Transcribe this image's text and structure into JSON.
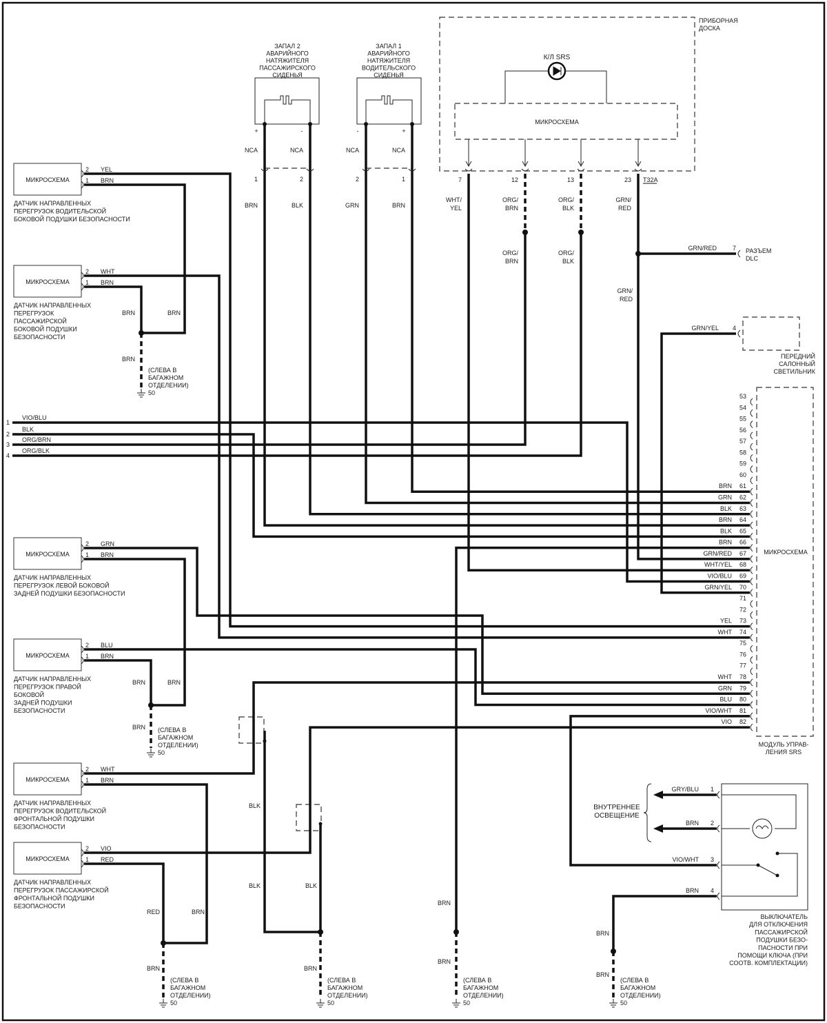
{
  "instrument_panel": {
    "title": [
      "ПРИБОРНАЯ",
      "ДОСКА"
    ],
    "lamp_label": "К/Л SRS",
    "chip_label": "МИКРОСХЕМА",
    "connector": "T32A",
    "pins": [
      "7",
      "12",
      "13",
      "23"
    ],
    "wires": [
      [
        "WHT/",
        "YEL"
      ],
      [
        "ORG/",
        "BRN"
      ],
      [
        "ORG/",
        "BLK"
      ],
      [
        "GRN/",
        "RED"
      ]
    ],
    "wires_below_splice": [
      [
        "ORG/",
        "BRN"
      ],
      [
        "ORG/",
        "BLK"
      ],
      [
        "GRN/",
        "RED"
      ]
    ]
  },
  "pretensioners": [
    {
      "title": [
        "ЗАПАЛ 2",
        "АВАРИЙНОГО",
        "НАТЯЖИТЕЛЯ",
        "ПАССАЖИРСКОГО",
        "СИДЕНЬЯ"
      ],
      "polarity": [
        "+",
        "-"
      ],
      "nca": [
        "NCA",
        "NCA"
      ],
      "pins": [
        "1",
        "2"
      ],
      "wires": [
        "BRN",
        "BLK"
      ]
    },
    {
      "title": [
        "ЗАПАЛ 1",
        "АВАРИЙНОГО",
        "НАТЯЖИТЕЛЯ",
        "ВОДИТЕЛЬСКОГО",
        "СИДЕНЬЯ"
      ],
      "polarity": [
        "-",
        "+"
      ],
      "nca": [
        "NCA",
        "NCA"
      ],
      "pins": [
        "2",
        "1"
      ],
      "wires": [
        "GRN",
        "BRN"
      ]
    }
  ],
  "dlc": {
    "wire": "GRN/RED",
    "pin": "7",
    "label": [
      "РАЗЪЕМ",
      "DLC"
    ]
  },
  "dome_light": {
    "wire": "GRN/YEL",
    "pin": "4",
    "label": [
      "ПЕРЕДНИЙ",
      "САЛОННЫЙ",
      "СВЕТИЛЬНИК"
    ]
  },
  "left_connector": [
    {
      "pin": "1",
      "wire": "VIO/BLU"
    },
    {
      "pin": "2",
      "wire": "BLK"
    },
    {
      "pin": "3",
      "wire": "ORG/BRN"
    },
    {
      "pin": "4",
      "wire": "ORG/BLK"
    }
  ],
  "sensors": [
    {
      "chip": "МИКРОСХЕМА",
      "pins": [
        "2",
        "1"
      ],
      "wires": [
        "YEL",
        "BRN"
      ],
      "label": [
        "ДАТЧИК НАПРАВЛЕННЫХ",
        "ПЕРЕГРУЗОК ВОДИТЕЛЬСКОЙ",
        "БОКОВОЙ ПОДУШКИ  БЕЗОПАСНОСТИ"
      ]
    },
    {
      "chip": "МИКРОСХЕМА",
      "pins": [
        "2",
        "1"
      ],
      "wires": [
        "WHT",
        "BRN"
      ],
      "label": [
        "ДАТЧИК НАПРАВЛЕННЫХ",
        "ПЕРЕГРУЗОК",
        "ПАССАЖИРСКОЙ",
        "БОКОВОЙ ПОДУШКИ",
        "БЕЗОПАСНОСТИ"
      ]
    },
    {
      "chip": "МИКРОСХЕМА",
      "pins": [
        "2",
        "1"
      ],
      "wires": [
        "GRN",
        "BRN"
      ],
      "label": [
        "ДАТЧИК НАПРАВЛЕННЫХ",
        "ПЕРЕГРУЗОК ЛЕВОЙ БОКОВОЙ",
        "ЗАДНЕЙ ПОДУШКИ  БЕЗОПАСНОСТИ"
      ]
    },
    {
      "chip": "МИКРОСХЕМА",
      "pins": [
        "2",
        "1"
      ],
      "wires": [
        "BLU",
        "BRN"
      ],
      "label": [
        "ДАТЧИК НАПРАВЛЕННЫХ",
        "ПЕРЕГРУЗОК ПРАВОЙ",
        "БОКОВОЙ",
        "ЗАДНЕЙ ПОДУШКИ",
        "БЕЗОПАСНОСТИ"
      ]
    },
    {
      "chip": "МИКРОСХЕМА",
      "pins": [
        "2",
        "1"
      ],
      "wires": [
        "WHT",
        "BRN"
      ],
      "label": [
        "ДАТЧИК НАПРАВЛЕННЫХ",
        "ПЕРЕГРУЗОК ВОДИТЕЛЬСКОЙ",
        "ФРОНТАЛЬНОЙ ПОДУШКИ",
        "БЕЗОПАСНОСТИ"
      ]
    },
    {
      "chip": "МИКРОСХЕМА",
      "pins": [
        "2",
        "1"
      ],
      "wires": [
        "VIO",
        "RED"
      ],
      "label": [
        "ДАТЧИК НАПРАВЛЕННЫХ",
        "ПЕРЕГРУЗОК ПАССАЖИРСКОЙ",
        "ФРОНТАЛЬНОЙ ПОДУШКИ",
        "БЕЗОПАСНОСТИ"
      ]
    }
  ],
  "grounds": [
    {
      "wires_above": [
        "BRN",
        "BRN"
      ],
      "wire_below": "BRN",
      "location": [
        "(СЛЕВА В",
        "БАГАЖНОМ",
        "ОТДЕЛЕНИИ)"
      ],
      "number": "50"
    },
    {
      "wires_above": [
        "BRN",
        "BRN"
      ],
      "wire_below": "BRN",
      "location": [
        "(СЛЕВА В",
        "БАГАЖНОМ",
        "ОТДЕЛЕНИИ)"
      ],
      "number": "50"
    },
    {
      "wires_above": [
        "RED",
        "BRN"
      ],
      "wire_below": "BRN",
      "location": [
        "(СЛЕВА В",
        "БАГАЖНОМ",
        "ОТДЕЛЕНИИ)"
      ],
      "number": "50"
    },
    {
      "wires_above": [
        "BLK",
        "BLK",
        "BLK"
      ],
      "wire_below": "BRN",
      "location": [
        "(СЛЕВА В",
        "БАГАЖНОМ",
        "ОТДЕЛЕНИИ)"
      ],
      "number": "50"
    },
    {
      "wires_above": [
        "BRN"
      ],
      "wire_below": "BRN",
      "location": [
        "(СЛЕВА В",
        "БАГАЖНОМ",
        "ОТДЕЛЕНИИ)"
      ],
      "number": "50"
    },
    {
      "wires_above": [
        "BRN"
      ],
      "wire_below": "BRN",
      "location": [
        "(СЛЕВА В",
        "БАГАЖНОМ",
        "ОТДЕЛЕНИИ)"
      ],
      "number": "50"
    }
  ],
  "srs_module": {
    "chip_label": "МИКРОСХЕМА",
    "label": [
      "МОДУЛЬ УПРАВ-",
      "ЛЕНИЯ SRS"
    ],
    "pins": [
      {
        "pin": "53",
        "wire": ""
      },
      {
        "pin": "54",
        "wire": ""
      },
      {
        "pin": "55",
        "wire": ""
      },
      {
        "pin": "56",
        "wire": ""
      },
      {
        "pin": "57",
        "wire": ""
      },
      {
        "pin": "58",
        "wire": ""
      },
      {
        "pin": "59",
        "wire": ""
      },
      {
        "pin": "60",
        "wire": ""
      },
      {
        "pin": "61",
        "wire": "BRN"
      },
      {
        "pin": "62",
        "wire": "GRN"
      },
      {
        "pin": "63",
        "wire": "BLK"
      },
      {
        "pin": "64",
        "wire": "BRN"
      },
      {
        "pin": "65",
        "wire": "BLK"
      },
      {
        "pin": "66",
        "wire": "BRN"
      },
      {
        "pin": "67",
        "wire": "GRN/RED"
      },
      {
        "pin": "68",
        "wire": "WHT/YEL"
      },
      {
        "pin": "69",
        "wire": "VIO/BLU"
      },
      {
        "pin": "70",
        "wire": "GRN/YEL"
      },
      {
        "pin": "71",
        "wire": ""
      },
      {
        "pin": "72",
        "wire": ""
      },
      {
        "pin": "73",
        "wire": "YEL"
      },
      {
        "pin": "74",
        "wire": "WHT"
      },
      {
        "pin": "75",
        "wire": ""
      },
      {
        "pin": "76",
        "wire": ""
      },
      {
        "pin": "77",
        "wire": ""
      },
      {
        "pin": "78",
        "wire": "WHT"
      },
      {
        "pin": "79",
        "wire": "GRN"
      },
      {
        "pin": "80",
        "wire": "BLU"
      },
      {
        "pin": "81",
        "wire": "VIO/WHT"
      },
      {
        "pin": "82",
        "wire": "VIO"
      }
    ]
  },
  "switch": {
    "interior_light_label": [
      "ВНУТРЕННЕЕ",
      "ОСВЕЩЕНИЕ"
    ],
    "pins": [
      {
        "pin": "1",
        "wire": "GRY/BLU"
      },
      {
        "pin": "2",
        "wire": "BRN"
      },
      {
        "pin": "3",
        "wire": "VIO/WHT"
      },
      {
        "pin": "4",
        "wire": "BRN"
      }
    ],
    "label": [
      "ВЫКЛЮЧАТЕЛЬ",
      "ДЛЯ ОТКЛЮЧЕНИЯ",
      "ПАССАЖИРСКОЙ",
      "ПОДУШКИ  БЕЗО-",
      "ПАСНОСТИ  ПРИ",
      "ПОМОЩИ  КЛЮЧА (ПРИ",
      "СООТВ. КОМПЛЕКТАЦИИ)"
    ]
  }
}
